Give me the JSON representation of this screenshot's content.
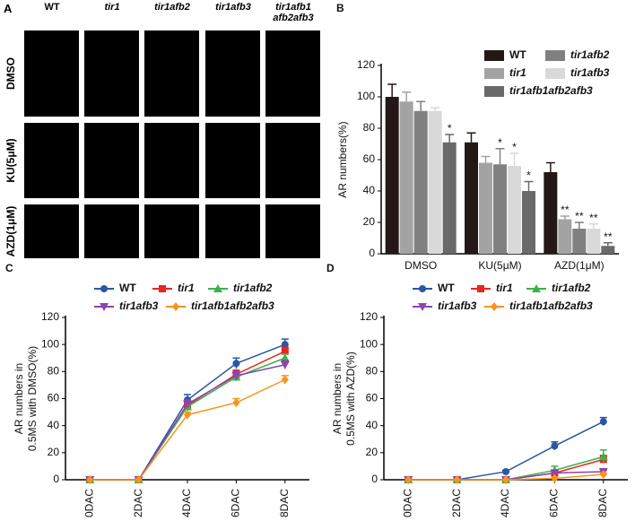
{
  "photo_panel": {
    "panel_label": "A",
    "columns": [
      "WT",
      "tir1",
      "tir1afb2",
      "tir1afb3",
      "tir1afb1 afb2afb3"
    ],
    "rows": [
      "DMSO",
      "KU(5μM)",
      "AZD(1μM)"
    ]
  },
  "chart_data": [
    {
      "type": "bar",
      "panel_label": "B",
      "ylabel": [
        "AR numbers(%)"
      ],
      "categories": [
        "DMSO",
        "KU(5μM)",
        "AZD(1μM)"
      ],
      "ylim": [
        0,
        120
      ],
      "yticks": [
        0,
        20,
        40,
        60,
        80,
        100,
        120
      ],
      "series": [
        {
          "name": "WT",
          "color": "#231815",
          "values": [
            100,
            71,
            52
          ],
          "errors": [
            8,
            6,
            6
          ],
          "significance": [
            null,
            null,
            null
          ]
        },
        {
          "name": "tir1",
          "color": "#a3a3a3",
          "values": [
            97,
            58,
            22
          ],
          "errors": [
            6,
            4,
            2
          ],
          "significance": [
            null,
            null,
            "**"
          ]
        },
        {
          "name": "tir1afb2",
          "color": "#808080",
          "values": [
            91,
            57,
            16
          ],
          "errors": [
            6,
            10,
            4
          ],
          "significance": [
            null,
            "*",
            "**"
          ]
        },
        {
          "name": "tir1afb3",
          "color": "#d9d9d9",
          "values": [
            91,
            56,
            16
          ],
          "errors": [
            2,
            8,
            3
          ],
          "significance": [
            null,
            "*",
            "**"
          ]
        },
        {
          "name": "tir1afb1afb2afb3",
          "color": "#696969",
          "values": [
            71,
            40,
            5
          ],
          "errors": [
            5,
            6,
            2
          ],
          "significance": [
            "*",
            "*",
            "**"
          ]
        }
      ]
    },
    {
      "type": "line",
      "panel_label": "C",
      "ylabel": [
        "AR numbers in",
        "0.5MS with DMSO(%)"
      ],
      "categories": [
        "0DAC",
        "2DAC",
        "4DAC",
        "6DAC",
        "8DAC"
      ],
      "ylim": [
        0,
        120
      ],
      "yticks": [
        0,
        20,
        40,
        60,
        80,
        100,
        120
      ],
      "series": [
        {
          "name": "WT",
          "color": "#2a56a6",
          "marker": "circle",
          "values": [
            0,
            0,
            59,
            86,
            100
          ],
          "errors": [
            0,
            0,
            4,
            4,
            4
          ]
        },
        {
          "name": "tir1",
          "color": "#e8251f",
          "marker": "square",
          "values": [
            0,
            0,
            55,
            78,
            95
          ],
          "errors": [
            0,
            0,
            3,
            3,
            3
          ]
        },
        {
          "name": "tir1afb2",
          "color": "#3bb34a",
          "marker": "triangle-up",
          "values": [
            0,
            0,
            54,
            76,
            90
          ],
          "errors": [
            0,
            0,
            3,
            3,
            3
          ]
        },
        {
          "name": "tir1afb3",
          "color": "#8e44ad",
          "marker": "triangle-down",
          "values": [
            0,
            0,
            56,
            77,
            85
          ],
          "errors": [
            0,
            0,
            3,
            3,
            3
          ]
        },
        {
          "name": "tir1afb1afb2afb3",
          "color": "#f7941d",
          "marker": "diamond",
          "values": [
            0,
            0,
            48,
            57,
            74
          ],
          "errors": [
            0,
            0,
            2,
            3,
            3
          ]
        }
      ]
    },
    {
      "type": "line",
      "panel_label": "D",
      "ylabel": [
        "AR numbers in",
        "0.5MS with AZD(%)"
      ],
      "categories": [
        "0DAC",
        "2DAC",
        "4DAC",
        "6DAC",
        "8DAC"
      ],
      "ylim": [
        0,
        120
      ],
      "yticks": [
        0,
        20,
        40,
        60,
        80,
        100,
        120
      ],
      "series": [
        {
          "name": "WT",
          "color": "#2a56a6",
          "marker": "circle",
          "values": [
            0,
            0,
            6,
            25,
            43
          ],
          "errors": [
            0,
            0,
            1,
            3,
            3
          ]
        },
        {
          "name": "tir1",
          "color": "#e8251f",
          "marker": "square",
          "values": [
            0,
            0,
            0,
            5,
            15
          ],
          "errors": [
            0,
            0,
            0,
            2,
            3
          ]
        },
        {
          "name": "tir1afb2",
          "color": "#3bb34a",
          "marker": "triangle-up",
          "values": [
            0,
            0,
            0,
            7,
            17
          ],
          "errors": [
            0,
            0,
            0,
            3,
            5
          ]
        },
        {
          "name": "tir1afb3",
          "color": "#8e44ad",
          "marker": "triangle-down",
          "values": [
            0,
            0,
            0,
            5,
            6
          ],
          "errors": [
            0,
            0,
            0,
            1,
            1
          ]
        },
        {
          "name": "tir1afb1afb2afb3",
          "color": "#f7941d",
          "marker": "diamond",
          "values": [
            0,
            0,
            0,
            1,
            4
          ],
          "errors": [
            0,
            0,
            0,
            1,
            1
          ]
        }
      ]
    }
  ]
}
